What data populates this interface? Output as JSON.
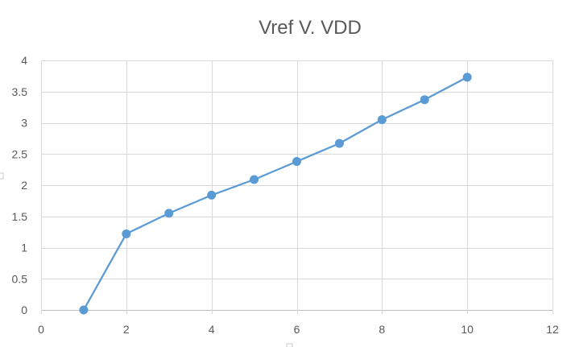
{
  "colors": {
    "series": "#5b9bd5",
    "grid": "#d9d9d9",
    "text": "#595959"
  },
  "chart_data": {
    "type": "line",
    "title": "Vref V. VDD",
    "xlabel": "",
    "ylabel": "",
    "xlim": [
      0,
      12
    ],
    "ylim": [
      0,
      4
    ],
    "x_ticks": [
      0,
      2,
      4,
      6,
      8,
      10,
      12
    ],
    "y_ticks": [
      0,
      0.5,
      1,
      1.5,
      2,
      2.5,
      3,
      3.5,
      4
    ],
    "grid": true,
    "legend": "none",
    "series": [
      {
        "x": [
          1,
          2,
          3,
          4,
          5,
          6,
          7,
          8,
          9,
          10
        ],
        "y": [
          0,
          1.22,
          1.55,
          1.84,
          2.09,
          2.38,
          2.67,
          3.05,
          3.37,
          3.73
        ],
        "marker": "circle"
      }
    ]
  }
}
